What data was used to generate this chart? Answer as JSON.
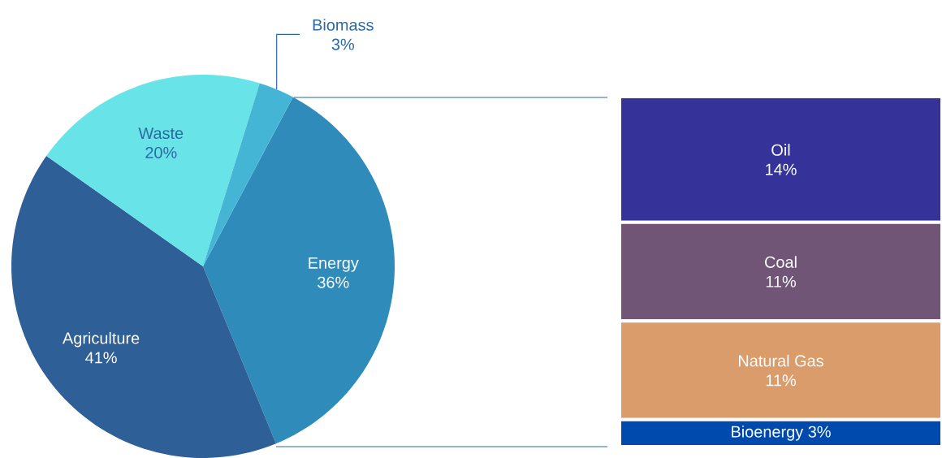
{
  "chart_data": [
    {
      "type": "pie",
      "categories": [
        "Energy",
        "Agriculture",
        "Waste",
        "Biomass"
      ],
      "values": [
        36,
        41,
        20,
        3
      ],
      "value_labels": [
        "36%",
        "41%",
        "20%",
        "3%"
      ],
      "colors": [
        "#2e8bba",
        "#2e5f96",
        "#68e4e8",
        "#45b5d6"
      ]
    },
    {
      "type": "bar",
      "stacked": true,
      "categories": [
        null
      ],
      "series": [
        {
          "name": "Bioenergy",
          "color": "#004aad",
          "values": [
            3
          ],
          "value_labels": [
            "3%"
          ]
        },
        {
          "name": "Natural Gas",
          "color": "#db9c6b",
          "values": [
            11
          ],
          "value_labels": [
            "11%"
          ]
        },
        {
          "name": "Coal",
          "color": "#705577",
          "values": [
            11
          ],
          "value_labels": [
            "11%"
          ]
        },
        {
          "name": "Oil",
          "color": "#35339a",
          "values": [
            14
          ],
          "value_labels": [
            "14%"
          ]
        }
      ]
    }
  ]
}
